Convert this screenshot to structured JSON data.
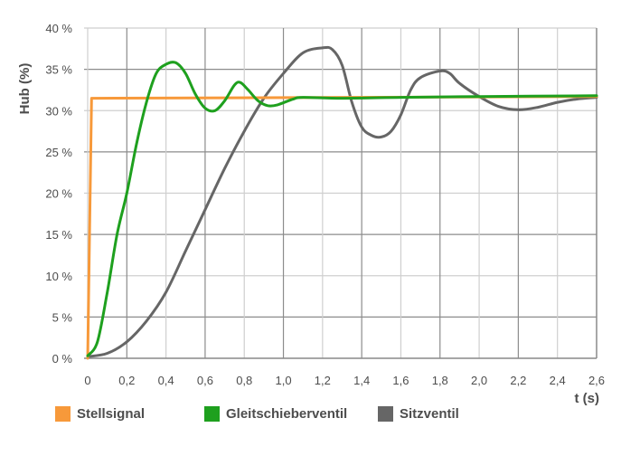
{
  "chart_data": {
    "type": "line",
    "title": "",
    "xlabel": "t (s)",
    "ylabel": "Hub (%)",
    "xlim": [
      0,
      2.6
    ],
    "ylim": [
      0,
      40
    ],
    "grid": true,
    "legend_position": "bottom",
    "x_ticks": [
      "0",
      "0,2",
      "0,4",
      "0,6",
      "0,8",
      "1,0",
      "1,2",
      "1,4",
      "1,6",
      "1,8",
      "2,0",
      "2,2",
      "2,4",
      "2,6"
    ],
    "y_ticks": [
      "0 %",
      "5 %",
      "10 %",
      "15 %",
      "20 %",
      "25 %",
      "30 %",
      "35 %",
      "40 %"
    ],
    "series": [
      {
        "name": "Stellsignal",
        "color": "#f7993a",
        "x": [
          0,
          0.02,
          0.03,
          2.6
        ],
        "y": [
          0,
          31.5,
          31.5,
          31.7
        ]
      },
      {
        "name": "Gleitschieberventil",
        "color": "#1ea01e",
        "x": [
          0,
          0.05,
          0.1,
          0.15,
          0.2,
          0.25,
          0.3,
          0.35,
          0.4,
          0.45,
          0.5,
          0.55,
          0.6,
          0.65,
          0.7,
          0.75,
          0.78,
          0.82,
          0.87,
          0.92,
          0.97,
          1.05,
          1.1,
          1.3,
          1.6,
          2.0,
          2.6
        ],
        "y": [
          0.3,
          2,
          8,
          15,
          20,
          26,
          31,
          34.5,
          35.6,
          35.8,
          34.5,
          32,
          30.3,
          30,
          31.2,
          33.1,
          33.4,
          32.5,
          31.2,
          30.6,
          30.7,
          31.4,
          31.6,
          31.5,
          31.6,
          31.7,
          31.8
        ]
      },
      {
        "name": "Sitzventil",
        "color": "#666666",
        "x": [
          0,
          0.1,
          0.2,
          0.3,
          0.4,
          0.5,
          0.6,
          0.7,
          0.8,
          0.9,
          1.0,
          1.1,
          1.2,
          1.25,
          1.3,
          1.35,
          1.4,
          1.45,
          1.5,
          1.55,
          1.6,
          1.65,
          1.7,
          1.8,
          1.85,
          1.9,
          2.0,
          2.1,
          2.2,
          2.3,
          2.4,
          2.5,
          2.6
        ],
        "y": [
          0.2,
          0.6,
          2,
          4.5,
          8,
          13,
          18,
          23,
          27.5,
          31.5,
          34.5,
          37,
          37.6,
          37.4,
          35.5,
          31,
          28,
          27,
          26.8,
          27.5,
          29.5,
          32.5,
          34,
          34.8,
          34.5,
          33.3,
          31.7,
          30.5,
          30.1,
          30.4,
          31,
          31.4,
          31.6
        ]
      }
    ]
  },
  "legend": {
    "items": [
      {
        "label": "Stellsignal",
        "color": "#f7993a"
      },
      {
        "label": "Gleitschieberventil",
        "color": "#1ea01e"
      },
      {
        "label": "Sitzventil",
        "color": "#666666"
      }
    ]
  }
}
